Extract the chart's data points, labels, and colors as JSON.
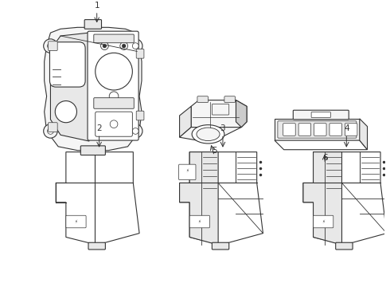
{
  "background_color": "#ffffff",
  "line_color": "#333333",
  "gray_fill": "#e8e8e8",
  "light_fill": "#f5f5f5",
  "dark_fill": "#cccccc",
  "fig_width": 4.9,
  "fig_height": 3.6,
  "dpi": 100
}
